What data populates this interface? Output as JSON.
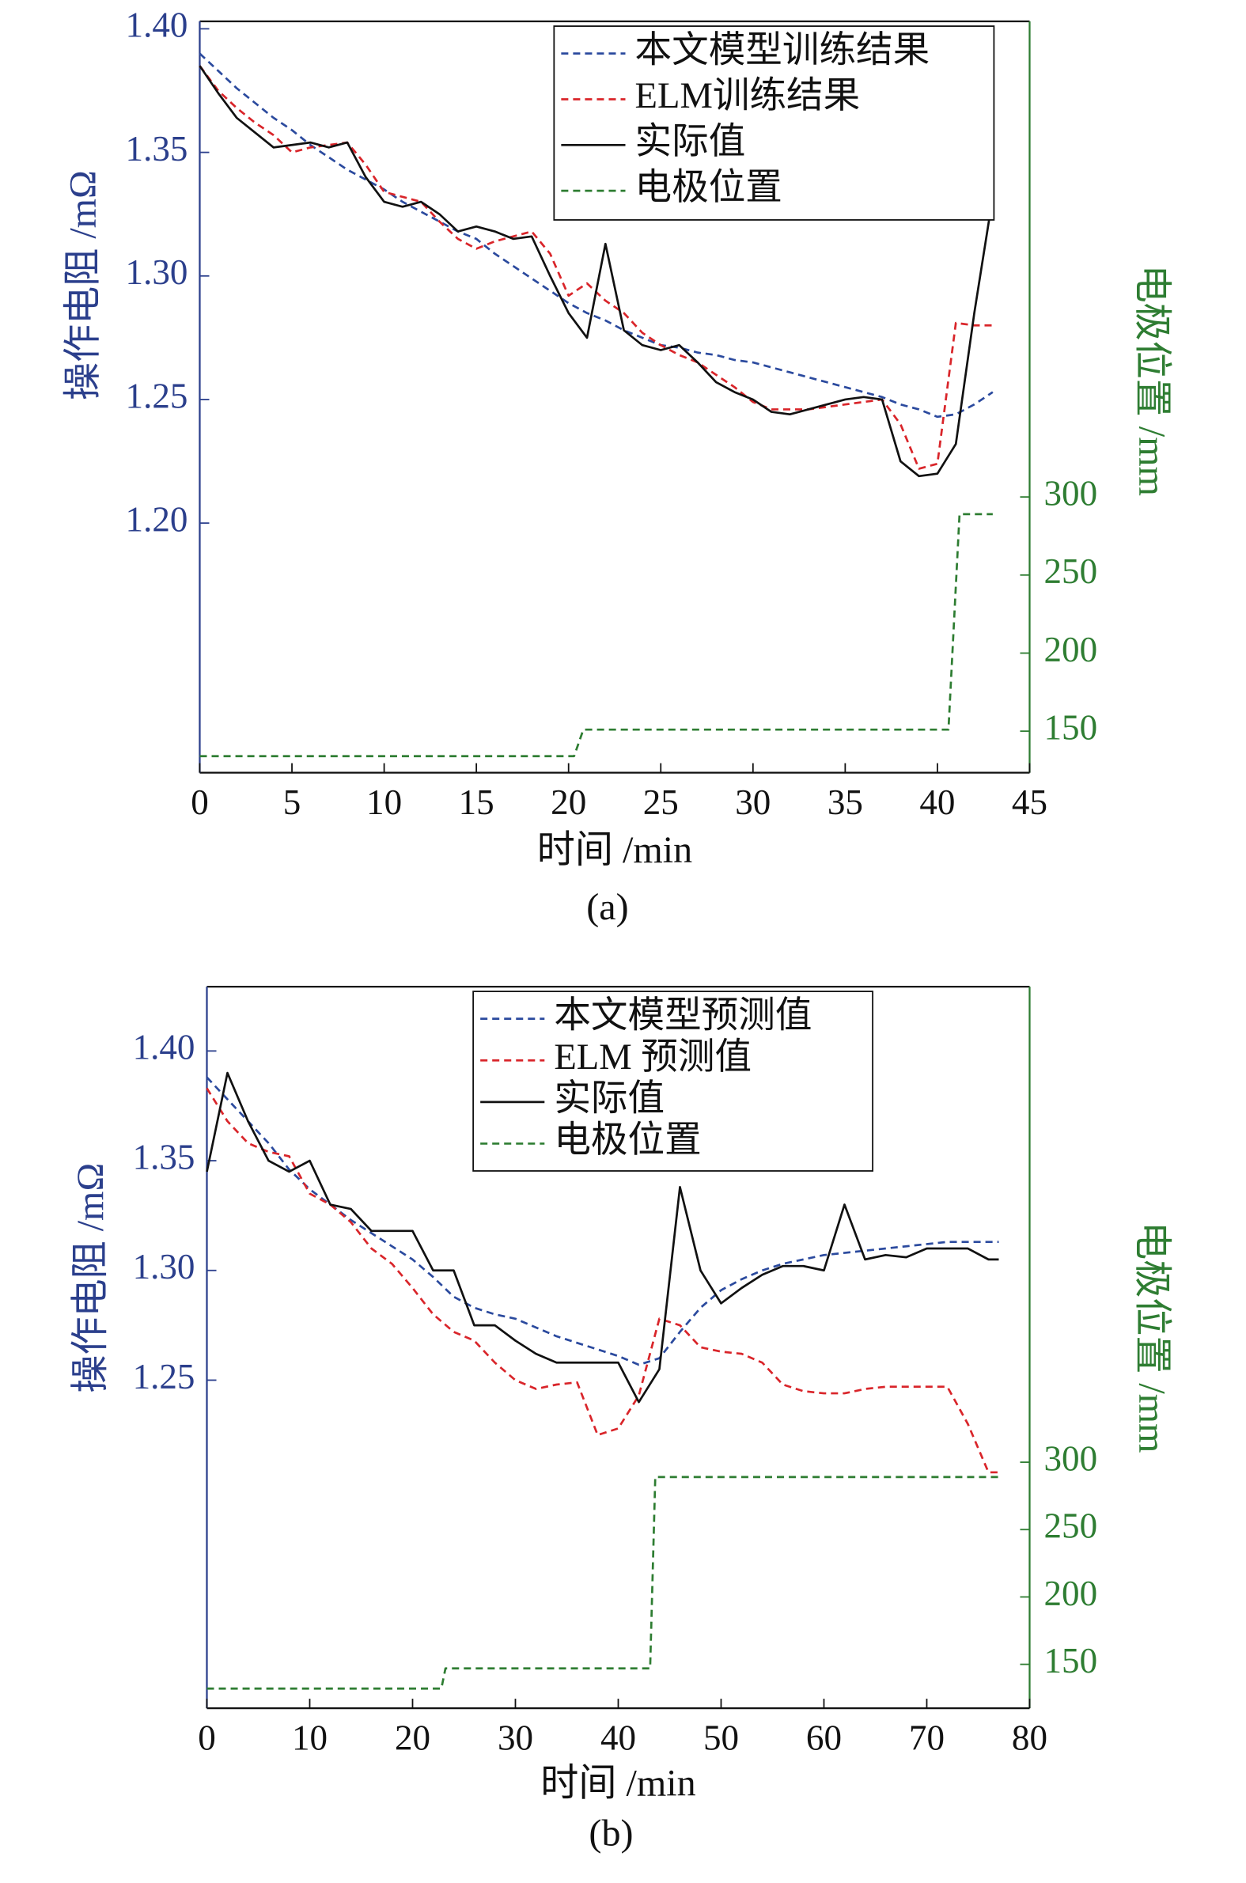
{
  "chart_data": [
    {
      "type": "line",
      "caption": "(a)",
      "xlabel": "时间 /min",
      "ylabel": "操作电阻 /mΩ",
      "y2label": "电极位置 /mm",
      "xlim": [
        0,
        45
      ],
      "xticks": [
        0,
        5,
        10,
        15,
        20,
        25,
        30,
        35,
        40,
        45
      ],
      "ylim": [
        1.099,
        1.403
      ],
      "yticks": [
        {
          "value": 1.2,
          "label": "1.20"
        },
        1.25,
        {
          "value": 1.3,
          "label": "1.30"
        },
        1.35,
        {
          "value": 1.4,
          "label": "1.40"
        }
      ],
      "y2lim": [
        123.4,
        604.6
      ],
      "y2ticks": [
        150,
        200,
        250,
        300
      ],
      "legend": "upper right",
      "x": [
        0,
        1,
        2,
        3,
        4,
        5,
        6,
        7,
        8,
        9,
        10,
        11,
        12,
        13,
        14,
        15,
        16,
        17,
        18,
        19,
        20,
        21,
        22,
        23,
        24,
        25,
        26,
        27,
        28,
        29,
        30,
        31,
        32,
        33,
        34,
        35,
        36,
        37,
        38,
        39,
        40,
        41,
        42,
        43
      ],
      "series": [
        {
          "name": "本文模型训练结果",
          "color": "#2b4a9e",
          "style": "dashed",
          "values": [
            1.39,
            1.383,
            1.376,
            1.37,
            1.364,
            1.359,
            1.353,
            1.348,
            1.343,
            1.339,
            1.335,
            1.33,
            1.326,
            1.322,
            1.318,
            1.315,
            1.309,
            1.304,
            1.299,
            1.294,
            1.289,
            1.285,
            1.282,
            1.278,
            1.275,
            1.272,
            1.271,
            1.269,
            1.268,
            1.266,
            1.265,
            1.263,
            1.261,
            1.259,
            1.257,
            1.255,
            1.253,
            1.251,
            1.248,
            1.246,
            1.243,
            1.244,
            1.248,
            1.253
          ]
        },
        {
          "name": "ELM训练结果",
          "color": "#d9252a",
          "style": "dashed",
          "values": [
            1.385,
            1.375,
            1.368,
            1.362,
            1.357,
            1.35,
            1.352,
            1.353,
            1.354,
            1.345,
            1.334,
            1.332,
            1.33,
            1.322,
            1.315,
            1.311,
            1.314,
            1.316,
            1.318,
            1.309,
            1.292,
            1.297,
            1.29,
            1.285,
            1.277,
            1.272,
            1.268,
            1.265,
            1.26,
            1.255,
            1.249,
            1.246,
            1.246,
            1.246,
            1.247,
            1.248,
            1.249,
            1.25,
            1.24,
            1.222,
            1.224,
            1.281,
            1.28,
            1.28
          ]
        },
        {
          "name": "实际值",
          "color": "#111111",
          "style": "solid",
          "values": [
            1.385,
            1.374,
            1.364,
            1.358,
            1.352,
            1.353,
            1.354,
            1.352,
            1.354,
            1.34,
            1.33,
            1.328,
            1.33,
            1.325,
            1.318,
            1.32,
            1.318,
            1.315,
            1.316,
            1.3,
            1.285,
            1.275,
            1.313,
            1.278,
            1.272,
            1.27,
            1.272,
            1.265,
            1.257,
            1.253,
            1.25,
            1.245,
            1.244,
            1.246,
            1.248,
            1.25,
            1.251,
            1.25,
            1.225,
            1.219,
            1.22,
            1.232,
            1.285,
            1.332
          ]
        },
        {
          "name": "电极位置",
          "color": "#2e7d32",
          "style": "dashed",
          "axis": "y2",
          "x": [
            0,
            20.3,
            20.8,
            40.6,
            41.2,
            43
          ],
          "values": [
            134,
            134,
            151,
            151,
            289,
            289
          ]
        }
      ]
    },
    {
      "type": "line",
      "caption": "(b)",
      "xlabel": "时间 /min",
      "ylabel": "操作电阻 /mΩ",
      "y2label": "电极位置 /mm",
      "xlim": [
        0,
        80
      ],
      "xticks": [
        0,
        10,
        20,
        30,
        40,
        50,
        60,
        70,
        80
      ],
      "ylim": [
        1.1005,
        1.4293
      ],
      "yticks": [
        1.25,
        {
          "value": 1.3,
          "label": "1.30"
        },
        1.35,
        {
          "value": 1.4,
          "label": "1.40"
        }
      ],
      "y2lim": [
        117.4,
        652.9
      ],
      "y2ticks": [
        150,
        200,
        250,
        300
      ],
      "legend": "upper right",
      "x": [
        0,
        2,
        4,
        6,
        8,
        10,
        12,
        14,
        16,
        18,
        20,
        22,
        24,
        26,
        28,
        30,
        32,
        34,
        36,
        38,
        40,
        42,
        44,
        46,
        48,
        50,
        52,
        54,
        56,
        58,
        60,
        62,
        64,
        66,
        68,
        70,
        72,
        74,
        76,
        77
      ],
      "series": [
        {
          "name": "本文模型预测值",
          "color": "#2b4a9e",
          "style": "dashed",
          "values": [
            1.388,
            1.378,
            1.368,
            1.358,
            1.346,
            1.337,
            1.33,
            1.323,
            1.317,
            1.311,
            1.305,
            1.297,
            1.288,
            1.283,
            1.28,
            1.278,
            1.274,
            1.27,
            1.267,
            1.264,
            1.261,
            1.257,
            1.26,
            1.272,
            1.283,
            1.291,
            1.296,
            1.3,
            1.303,
            1.305,
            1.307,
            1.308,
            1.309,
            1.31,
            1.311,
            1.312,
            1.313,
            1.313,
            1.313,
            1.313
          ]
        },
        {
          "name": "ELM 预测值",
          "color": "#d9252a",
          "style": "dashed",
          "values": [
            1.383,
            1.368,
            1.358,
            1.354,
            1.352,
            1.335,
            1.33,
            1.322,
            1.31,
            1.303,
            1.292,
            1.28,
            1.272,
            1.268,
            1.258,
            1.25,
            1.246,
            1.248,
            1.249,
            1.225,
            1.228,
            1.243,
            1.278,
            1.275,
            1.265,
            1.263,
            1.262,
            1.258,
            1.248,
            1.245,
            1.244,
            1.244,
            1.246,
            1.247,
            1.247,
            1.247,
            1.247,
            1.23,
            1.208,
            1.208
          ]
        },
        {
          "name": "实际值",
          "color": "#111111",
          "style": "solid",
          "values": [
            1.345,
            1.39,
            1.368,
            1.35,
            1.345,
            1.35,
            1.33,
            1.328,
            1.318,
            1.318,
            1.318,
            1.3,
            1.3,
            1.275,
            1.275,
            1.268,
            1.262,
            1.258,
            1.258,
            1.258,
            1.258,
            1.24,
            1.255,
            1.338,
            1.3,
            1.285,
            1.292,
            1.298,
            1.302,
            1.302,
            1.3,
            1.33,
            1.305,
            1.307,
            1.306,
            1.31,
            1.31,
            1.31,
            1.305,
            1.305
          ]
        },
        {
          "name": "电极位置",
          "color": "#2e7d32",
          "style": "dashed",
          "axis": "y2",
          "x": [
            0,
            22.8,
            23.2,
            43.1,
            43.6,
            77
          ],
          "values": [
            132,
            132,
            147,
            147,
            289,
            289
          ]
        }
      ]
    }
  ]
}
